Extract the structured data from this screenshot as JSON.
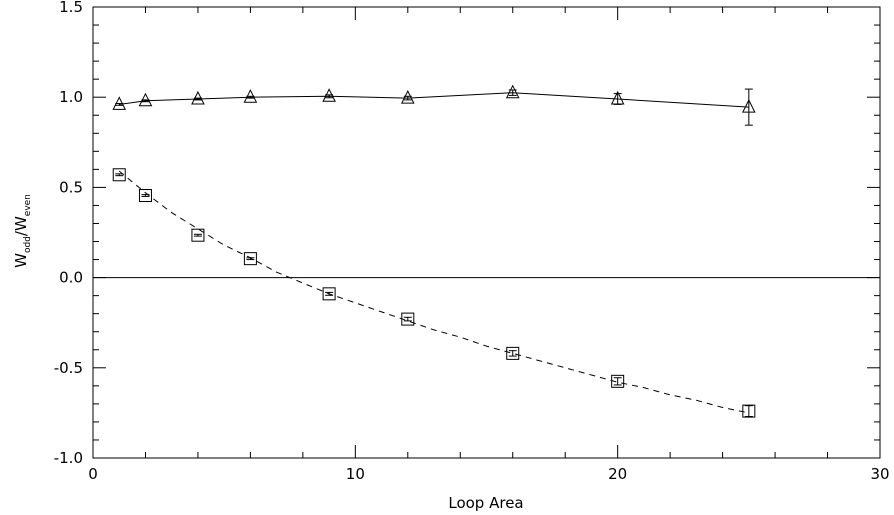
{
  "chart_data": {
    "type": "scatter",
    "xlabel": "Loop Area",
    "ylabel": {
      "base": "W",
      "num_sub": "odd",
      "den_sub": "even"
    },
    "xlim": [
      0,
      30
    ],
    "ylim": [
      -1.0,
      1.5
    ],
    "xticks": [
      0,
      10,
      20,
      30
    ],
    "yticks": [
      -1.0,
      -0.5,
      0.0,
      0.5,
      1.0,
      1.5
    ],
    "xtick_labels": [
      "0",
      "10",
      "20",
      "30"
    ],
    "ytick_labels": [
      "-1.0",
      "-0.5",
      "0.0",
      "0.5",
      "1.0",
      "1.5"
    ],
    "grid": false,
    "hlines": [
      0.0
    ],
    "series": [
      {
        "marker": "triangle",
        "line": "solid",
        "x": [
          1,
          2,
          4,
          6,
          9,
          12,
          16,
          20,
          25
        ],
        "y": [
          0.96,
          0.98,
          0.99,
          1.0,
          1.005,
          0.995,
          1.025,
          0.99,
          0.945
        ],
        "yerr": [
          0.005,
          0.005,
          0.005,
          0.005,
          0.008,
          0.01,
          0.015,
          0.03,
          0.1
        ]
      },
      {
        "marker": "square",
        "line": "none",
        "x": [
          1,
          2,
          4,
          6,
          9,
          12,
          16,
          20,
          25
        ],
        "y": [
          0.57,
          0.455,
          0.235,
          0.105,
          -0.09,
          -0.23,
          -0.42,
          -0.575,
          -0.74
        ],
        "yerr": [
          0.005,
          0.005,
          0.005,
          0.005,
          0.008,
          0.01,
          0.015,
          0.02,
          0.03
        ]
      },
      {
        "marker": "none",
        "line": "dashed",
        "x": [
          1,
          2,
          3,
          4,
          5,
          6,
          7,
          8,
          9,
          10,
          11,
          12,
          13,
          14,
          15,
          16,
          17,
          18,
          19,
          20,
          21,
          22,
          23,
          24,
          25
        ],
        "y": [
          0.59,
          0.47,
          0.36,
          0.27,
          0.18,
          0.11,
          0.03,
          -0.03,
          -0.09,
          -0.14,
          -0.19,
          -0.24,
          -0.29,
          -0.33,
          -0.38,
          -0.42,
          -0.46,
          -0.5,
          -0.54,
          -0.58,
          -0.61,
          -0.65,
          -0.68,
          -0.72,
          -0.75
        ]
      }
    ]
  }
}
